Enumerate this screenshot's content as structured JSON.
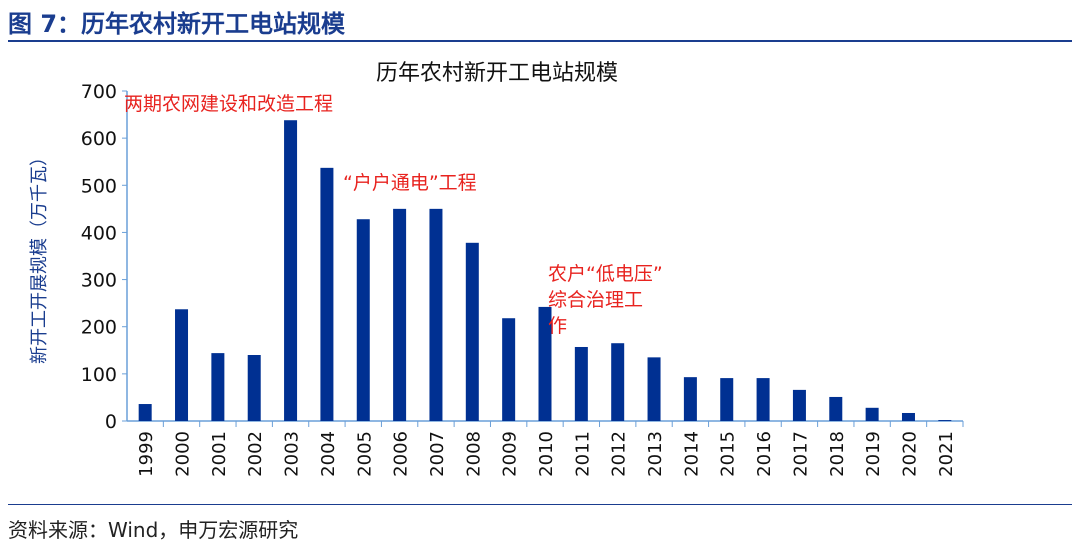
{
  "figure": {
    "title": "图 7：历年农村新开工电站规模",
    "source": "资料来源：Wind，申万宏源研究"
  },
  "colors": {
    "bar": "#003092",
    "axis": "#6a9fd8",
    "annotation": "#e8231f",
    "title": "#1a3d8f"
  },
  "chart_data": {
    "type": "bar",
    "title": "历年农村新开工电站规模",
    "xlabel": "",
    "ylabel": "新开工开展规模（万千瓦）",
    "ylim": [
      0,
      700
    ],
    "yticks": [
      0,
      100,
      200,
      300,
      400,
      500,
      600,
      700
    ],
    "grid": false,
    "categories": [
      "1999",
      "2000",
      "2001",
      "2002",
      "2003",
      "2004",
      "2005",
      "2006",
      "2007",
      "2008",
      "2009",
      "2010",
      "2011",
      "2012",
      "2013",
      "2014",
      "2015",
      "2016",
      "2017",
      "2018",
      "2019",
      "2020",
      "2021"
    ],
    "values": [
      36,
      237,
      144,
      140,
      638,
      537,
      428,
      450,
      450,
      378,
      218,
      242,
      157,
      165,
      135,
      93,
      91,
      91,
      66,
      51,
      28,
      17,
      2
    ],
    "annotations": [
      {
        "text": "两期农网建设和改造工程",
        "lines": [
          "两期农网建设和改造工程"
        ]
      },
      {
        "text": "“户户通电”工程",
        "lines": [
          "“户户通电”工程"
        ]
      },
      {
        "text": "农户“低电压”综合治理工作",
        "lines": [
          "农户“低电压”",
          "综合治理工",
          "作"
        ]
      }
    ]
  }
}
